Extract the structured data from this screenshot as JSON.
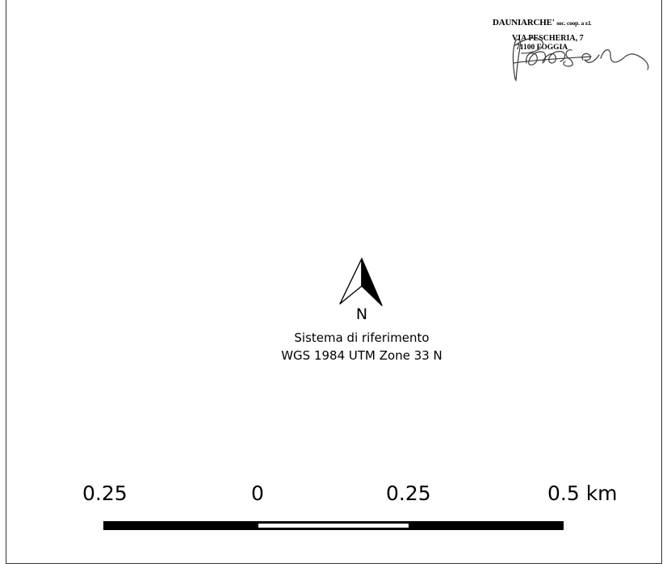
{
  "stamp": {
    "company": "DAUNIARCHE'",
    "company_suffix": "soc. coop. a r.l.",
    "address_line": "VIA PESCHERIA, 7",
    "city_line": "71100 FOGGIA"
  },
  "north_arrow": {
    "label": "N"
  },
  "reference": {
    "title": "Sistema di riferimento",
    "system": "WGS 1984 UTM Zone 33 N"
  },
  "scale_bar": {
    "labels": [
      "0.25",
      "0",
      "0.25",
      "0.5 km"
    ],
    "ticks_km": [
      -0.25,
      0,
      0.25,
      0.5
    ],
    "unit": "km",
    "segment_colors": [
      "#000000",
      "#ffffff",
      "#000000"
    ]
  },
  "colors": {
    "ink": "#000000",
    "signature_ink": "#3a3a3a",
    "background": "#ffffff"
  }
}
